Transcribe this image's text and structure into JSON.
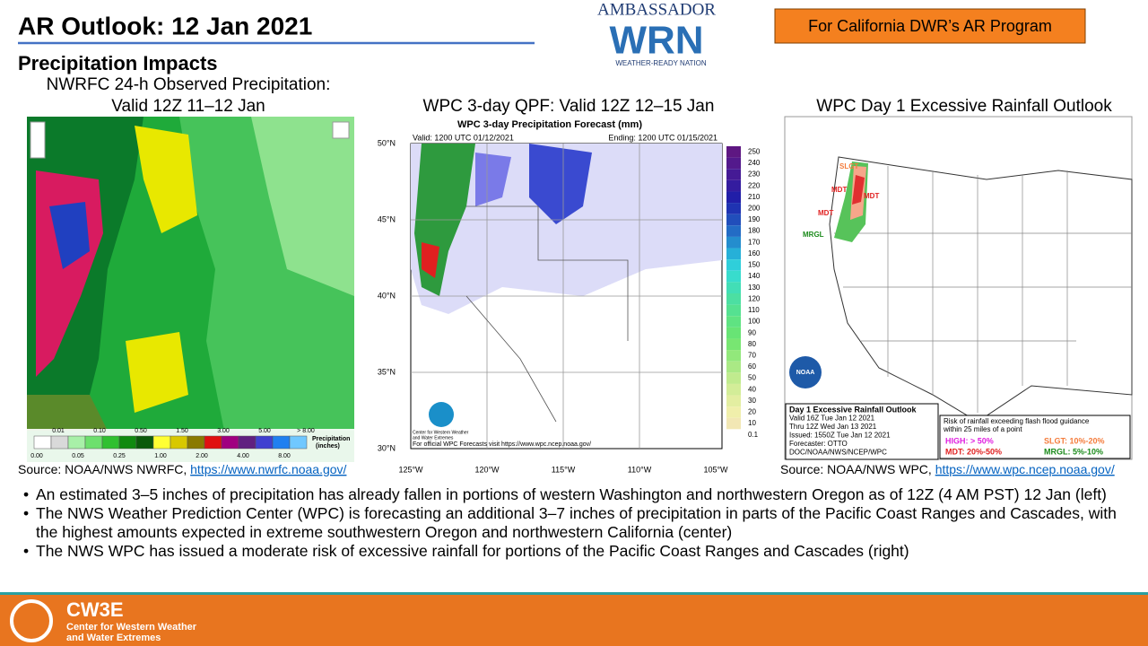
{
  "header": {
    "title": "AR Outlook: 12 Jan 2021",
    "subtitle": "Precipitation Impacts",
    "badge": "For California DWR’s AR Program",
    "logo": {
      "top": "AMBASSADOR",
      "main": "WRN",
      "bottom": "WEATHER-READY NATION"
    }
  },
  "panels": [
    {
      "title": [
        "NWRFC 24-h Observed Precipitation:",
        "Valid  12Z 11–12 Jan"
      ],
      "legend_top": [
        "0.01",
        "0.10",
        "0.50",
        "1.50",
        "3.00",
        "5.00",
        "> 8.00"
      ],
      "legend_bottom": [
        "0.00",
        "0.05",
        "0.25",
        "1.00",
        "2.00",
        "4.00",
        "8.00"
      ],
      "legend_label": [
        "Precipitation",
        "(inches)"
      ],
      "source": "Source: NOAA/NWS NWRFC, ",
      "link": "https://www.nwrfc.noaa.gov/"
    },
    {
      "title": "WPC 3-day QPF: Valid  12Z 12–15 Jan",
      "chart_title": "WPC 3-day Precipitation Forecast (mm)",
      "valid": "Valid: 1200 UTC 01/12/2021",
      "ending": "Ending: 1200 UTC 01/15/2021",
      "lat_labels": [
        "50°N",
        "45°N",
        "40°N",
        "35°N",
        "30°N"
      ],
      "lon_labels": [
        "125°W",
        "120°W",
        "115°W",
        "110°W",
        "105°W"
      ],
      "colorbar": [
        "250",
        "240",
        "230",
        "220",
        "210",
        "200",
        "190",
        "180",
        "170",
        "160",
        "150",
        "140",
        "130",
        "120",
        "110",
        "100",
        "90",
        "80",
        "70",
        "60",
        "50",
        "40",
        "30",
        "20",
        "10",
        "0.1"
      ],
      "logo_text": [
        "Center for Western Weather",
        "and Water Extremes"
      ],
      "footer": "For official WPC Forecasts visit https://www.wpc.ncep.noaa.gov/"
    },
    {
      "title": "WPC Day 1 Excessive Rainfall Outlook",
      "map_labels": [
        "SLGT",
        "MDT",
        "MDT",
        "MDT",
        "MRGL"
      ],
      "noaa": "NOAA",
      "box": [
        "Day 1 Excessive Rainfall Outlook",
        "Valid 16Z Tue Jan 12 2021",
        "Thru 12Z Wed Jan 13 2021",
        "Issued: 1550Z Tue Jan 12 2021",
        "Forecaster: OTTO",
        "DOC/NOAA/NWS/NCEP/WPC"
      ],
      "risk_heading": [
        "Risk of rainfall exceeding flash flood guidance",
        "within 25 miles of a point"
      ],
      "risk_items": [
        "HIGH: > 50%",
        "SLGT: 10%-20%",
        "MDT: 20%-50%",
        "MRGL: 5%-10%"
      ],
      "source": "Source: NOAA/NWS WPC, ",
      "link": "https://www.wpc.ncep.noaa.gov/"
    }
  ],
  "bullets": [
    "An estimated 3–5 inches of precipitation has already fallen in portions of western Washington and northwestern Oregon as of 12Z (4 AM PST) 12 Jan (left)",
    "The NWS Weather Prediction Center (WPC) is forecasting an additional 3–7 inches of precipitation in parts of the Pacific Coast Ranges and Cascades, with the highest amounts expected in extreme southwestern Oregon and northwestern California (center)",
    "The NWS WPC has issued a moderate risk of excessive rainfall for portions of the Pacific Coast Ranges and Cascades (right)"
  ],
  "footer": {
    "name": "CW3E",
    "line1": "Center for Western Weather",
    "line2": "and Water Extremes"
  }
}
